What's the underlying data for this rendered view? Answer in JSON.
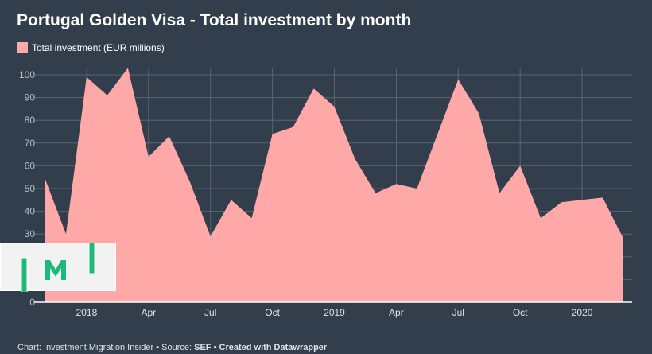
{
  "chart_data": {
    "type": "area",
    "title": "Portugal Golden Visa - Total investment by month",
    "legend": [
      "Total investment (EUR millions)"
    ],
    "x": [
      "Nov 2017",
      "Dec 2017",
      "Jan 2018",
      "Feb 2018",
      "Mar 2018",
      "Apr 2018",
      "May 2018",
      "Jun 2018",
      "Jul 2018",
      "Aug 2018",
      "Sep 2018",
      "Oct 2018",
      "Nov 2018",
      "Dec 2018",
      "Jan 2019",
      "Feb 2019",
      "Mar 2019",
      "Apr 2019",
      "May 2019",
      "Jun 2019",
      "Jul 2019",
      "Aug 2019",
      "Sep 2019",
      "Oct 2019",
      "Nov 2019",
      "Dec 2019",
      "Jan 2020",
      "Feb 2020",
      "Mar 2020"
    ],
    "series": [
      {
        "name": "Total investment (EUR millions)",
        "values": [
          54,
          30,
          99,
          91,
          103,
          64,
          73,
          53,
          29,
          45,
          37,
          74,
          77,
          94,
          86,
          63,
          48,
          52,
          50,
          74,
          98,
          83,
          48,
          60,
          37,
          44,
          45,
          46,
          28
        ]
      }
    ],
    "xticks": [
      {
        "label": "2018",
        "index": 2
      },
      {
        "label": "Apr",
        "index": 5
      },
      {
        "label": "Jul",
        "index": 8
      },
      {
        "label": "Oct",
        "index": 11
      },
      {
        "label": "2019",
        "index": 14
      },
      {
        "label": "Apr",
        "index": 17
      },
      {
        "label": "Jul",
        "index": 20
      },
      {
        "label": "Oct",
        "index": 23
      },
      {
        "label": "2020",
        "index": 26
      }
    ],
    "yticks": [
      "0",
      "10",
      "20",
      "30",
      "40",
      "50",
      "60",
      "70",
      "80",
      "90",
      "100"
    ],
    "ylim": [
      0,
      100
    ],
    "color": "#ffa8a8",
    "grid": true,
    "legend_position": "top-left"
  },
  "footer": {
    "prefix": "Chart: Investment Migration Insider • Source: ",
    "source": "SEF",
    "suffix": " • Created with Datawrapper"
  },
  "logo": {
    "text": "IMI"
  }
}
